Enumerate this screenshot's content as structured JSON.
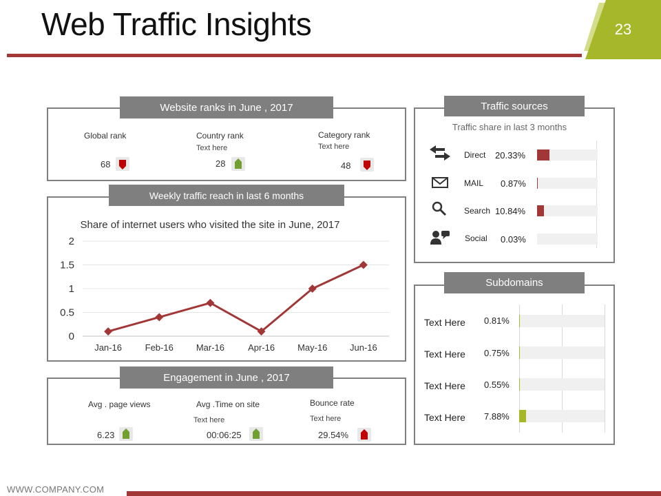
{
  "slide": {
    "title": "Web Traffic Insights",
    "page_number": "23",
    "footer": "WWW.COMPANY.COM"
  },
  "colors": {
    "accent_red": "#a23737",
    "accent_green": "#a6b82a",
    "panel_gray": "#7f7f7f",
    "track": "#f0f0f0"
  },
  "ranks": {
    "heading": "Website ranks in June , 2017",
    "items": [
      {
        "label": "Global rank",
        "note": "",
        "value": "68",
        "trend": "down"
      },
      {
        "label": "Country rank",
        "note": "Text here",
        "value": "28",
        "trend": "up"
      },
      {
        "label": "Category rank",
        "note": "Text here",
        "value": "48",
        "trend": "down"
      }
    ]
  },
  "weekly": {
    "heading": "Weekly traffic reach in last 6 months"
  },
  "engagement": {
    "heading": "Engagement in June , 2017",
    "items": [
      {
        "label": "Avg . page views",
        "note": "",
        "value": "6.23",
        "trend": "up"
      },
      {
        "label": "Avg .Time on site",
        "note": "Text here",
        "value": "00:06:25",
        "trend": "up"
      },
      {
        "label": "Bounce rate",
        "note": "Text here",
        "value": "29.54%",
        "trend": "up-red"
      }
    ]
  },
  "traffic_sources": {
    "heading": "Traffic sources",
    "subtitle": "Traffic share in last 3 months",
    "items": [
      {
        "label": "Direct",
        "value_text": "20.33%",
        "value": 20.33,
        "icon": "arrows-exchange-icon"
      },
      {
        "label": "MAIL",
        "value_text": "0.87%",
        "value": 0.87,
        "icon": "envelope-icon"
      },
      {
        "label": "Search",
        "value_text": "10.84%",
        "value": 10.84,
        "icon": "magnifier-icon"
      },
      {
        "label": "Social",
        "value_text": "0.03%",
        "value": 0.03,
        "icon": "people-chat-icon"
      }
    ]
  },
  "subdomains": {
    "heading": "Subdomains",
    "items": [
      {
        "label": "Text Here",
        "value_text": "0.81%",
        "value": 0.81
      },
      {
        "label": "Text Here",
        "value_text": "0.75%",
        "value": 0.75
      },
      {
        "label": "Text Here",
        "value_text": "0.55%",
        "value": 0.55
      },
      {
        "label": "Text Here",
        "value_text": "7.88%",
        "value": 7.88
      }
    ]
  },
  "chart_data": {
    "type": "line",
    "title": "Share of internet users who visited the site in June, 2017",
    "categories": [
      "Jan-16",
      "Feb-16",
      "Mar-16",
      "Apr-16",
      "May-16",
      "Jun-16"
    ],
    "series": [
      {
        "values": [
          0.1,
          0.4,
          0.7,
          0.1,
          1.0,
          1.5
        ]
      }
    ],
    "yticks": [
      "0",
      "0.5",
      "1",
      "1.5",
      "2"
    ],
    "ylim": [
      0,
      2
    ],
    "grid": true,
    "legend": "none"
  }
}
